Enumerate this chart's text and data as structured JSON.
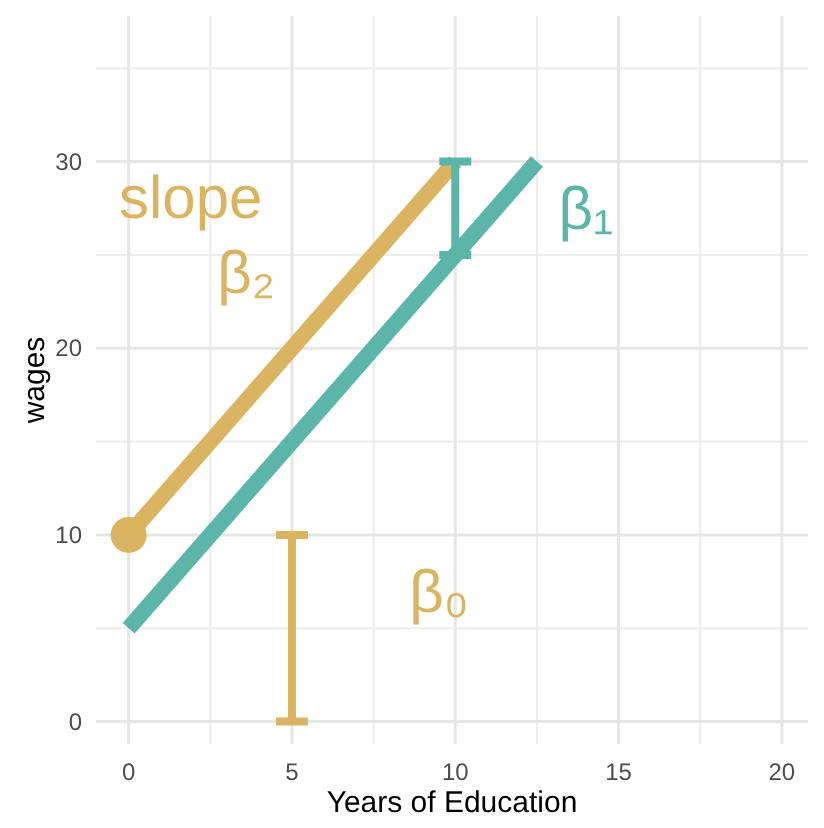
{
  "chart_data": {
    "type": "line",
    "xlabel": "Years of Education",
    "ylabel": "wages",
    "xlim": [
      -1,
      20.8
    ],
    "ylim": [
      -1.2,
      37.8
    ],
    "xticks": [
      0,
      5,
      10,
      15,
      20
    ],
    "yticks": [
      0,
      10,
      20,
      30
    ],
    "grid": true,
    "series": [
      {
        "color": "#dbb462",
        "x": [
          0,
          10
        ],
        "values": [
          10,
          30
        ]
      },
      {
        "color": "#5bb5a9",
        "x": [
          0,
          12.5
        ],
        "values": [
          5,
          30
        ]
      },
      {
        "type": "scatter",
        "color": "#dbb462",
        "x": [
          0
        ],
        "values": [
          10
        ],
        "marker": "circle"
      },
      {
        "color": "#dbb462",
        "x": [
          5,
          5
        ],
        "values": [
          0,
          10
        ]
      },
      {
        "color": "#5bb5a9",
        "x": [
          10,
          10
        ],
        "values": [
          25,
          30
        ]
      }
    ],
    "annotations": [
      "slope",
      "β₂",
      "β₁",
      "β₀"
    ]
  }
}
